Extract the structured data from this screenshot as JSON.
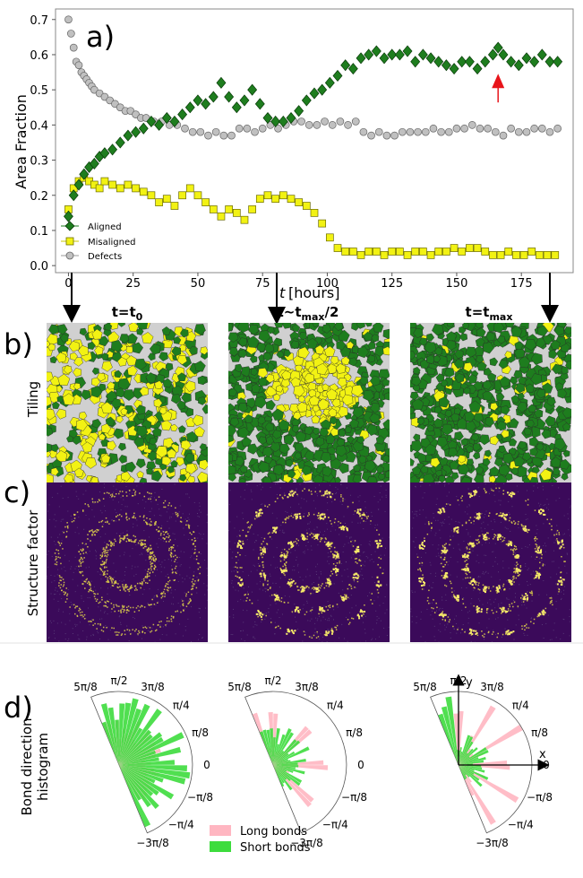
{
  "panel_labels": {
    "a": "a)",
    "b": "b)",
    "c": "c)",
    "d": "d)"
  },
  "columns": [
    "t=t",
    "t~t",
    "t=t"
  ],
  "column_titles": [
    {
      "main": "t=t",
      "sub": "0"
    },
    {
      "main": "t~t",
      "sub": "max",
      "tail": "/2"
    },
    {
      "main": "t=t",
      "sub": "max"
    }
  ],
  "row_labels": {
    "tiling": "Tiling",
    "structure": "Structure factor",
    "bond_line1": "Bond direction",
    "bond_line2": "histogram"
  },
  "legend_d": {
    "long": "Long bonds",
    "short": "Short bonds"
  },
  "colors": {
    "aligned": "#1e7d1e",
    "misaligned": "#f2f213",
    "defects": "#c0c0c0",
    "tile_bg": "#d0d0d0",
    "sf_bg": "#3b0a5a",
    "sf_ring": "#e0d24a",
    "long_bonds": "#ffb6c1",
    "short_bonds": "#3ddc3d",
    "arrow": "#e8141a"
  },
  "chart_data": {
    "type": "scatter",
    "title": "",
    "xlabel": "t [hours]",
    "ylabel": "Area Fraction",
    "xlim": [
      -5,
      195
    ],
    "ylim": [
      -0.02,
      0.73
    ],
    "xticks": [
      0,
      25,
      50,
      75,
      100,
      125,
      150,
      175
    ],
    "yticks": [
      0.0,
      0.1,
      0.2,
      0.3,
      0.4,
      0.5,
      0.6,
      0.7
    ],
    "legend_position": "bottom-left",
    "annotation": {
      "type": "red-arrow",
      "x": 166,
      "y": 0.51
    },
    "series": [
      {
        "name": "Aligned",
        "marker": "diamond",
        "x": [
          0,
          2,
          4,
          6,
          8,
          10,
          12,
          14,
          17,
          20,
          23,
          26,
          29,
          32,
          35,
          38,
          41,
          44,
          47,
          50,
          53,
          56,
          59,
          62,
          65,
          68,
          71,
          74,
          77,
          80,
          83,
          86,
          89,
          92,
          95,
          98,
          101,
          104,
          107,
          110,
          113,
          116,
          119,
          122,
          125,
          128,
          131,
          134,
          137,
          140,
          143,
          146,
          149,
          152,
          155,
          158,
          161,
          164,
          166,
          168,
          171,
          174,
          177,
          180,
          183,
          186,
          189
        ],
        "y": [
          0.14,
          0.2,
          0.23,
          0.26,
          0.28,
          0.29,
          0.31,
          0.32,
          0.33,
          0.35,
          0.37,
          0.38,
          0.39,
          0.41,
          0.4,
          0.42,
          0.41,
          0.43,
          0.45,
          0.47,
          0.46,
          0.48,
          0.52,
          0.48,
          0.45,
          0.47,
          0.5,
          0.46,
          0.42,
          0.41,
          0.41,
          0.42,
          0.44,
          0.47,
          0.49,
          0.5,
          0.52,
          0.54,
          0.57,
          0.56,
          0.59,
          0.6,
          0.61,
          0.59,
          0.6,
          0.6,
          0.61,
          0.58,
          0.6,
          0.59,
          0.58,
          0.57,
          0.56,
          0.58,
          0.58,
          0.56,
          0.58,
          0.6,
          0.62,
          0.6,
          0.58,
          0.57,
          0.59,
          0.58,
          0.6,
          0.58,
          0.58
        ]
      },
      {
        "name": "Misaligned",
        "marker": "square",
        "x": [
          0,
          2,
          4,
          6,
          8,
          10,
          12,
          14,
          17,
          20,
          23,
          26,
          29,
          32,
          35,
          38,
          41,
          44,
          47,
          50,
          53,
          56,
          59,
          62,
          65,
          68,
          71,
          74,
          77,
          80,
          83,
          86,
          89,
          92,
          95,
          98,
          101,
          104,
          107,
          110,
          113,
          116,
          119,
          122,
          125,
          128,
          131,
          134,
          137,
          140,
          143,
          146,
          149,
          152,
          155,
          158,
          161,
          164,
          167,
          170,
          173,
          176,
          179,
          182,
          185,
          188
        ],
        "y": [
          0.16,
          0.22,
          0.24,
          0.25,
          0.24,
          0.23,
          0.22,
          0.24,
          0.23,
          0.22,
          0.23,
          0.22,
          0.21,
          0.2,
          0.18,
          0.19,
          0.17,
          0.2,
          0.22,
          0.2,
          0.18,
          0.16,
          0.14,
          0.16,
          0.15,
          0.13,
          0.16,
          0.19,
          0.2,
          0.19,
          0.2,
          0.19,
          0.18,
          0.17,
          0.15,
          0.12,
          0.08,
          0.05,
          0.04,
          0.04,
          0.03,
          0.04,
          0.04,
          0.03,
          0.04,
          0.04,
          0.03,
          0.04,
          0.04,
          0.03,
          0.04,
          0.04,
          0.05,
          0.04,
          0.05,
          0.05,
          0.04,
          0.03,
          0.03,
          0.04,
          0.03,
          0.03,
          0.04,
          0.03,
          0.03,
          0.03
        ]
      },
      {
        "name": "Defects",
        "marker": "circle",
        "x": [
          0,
          1,
          2,
          3,
          4,
          5,
          6,
          7,
          8,
          9,
          10,
          12,
          14,
          16,
          18,
          20,
          22,
          24,
          26,
          28,
          30,
          33,
          36,
          39,
          42,
          45,
          48,
          51,
          54,
          57,
          60,
          63,
          66,
          69,
          72,
          75,
          78,
          81,
          84,
          87,
          90,
          93,
          96,
          99,
          102,
          105,
          108,
          111,
          114,
          117,
          120,
          123,
          126,
          129,
          132,
          135,
          138,
          141,
          144,
          147,
          150,
          153,
          156,
          159,
          162,
          165,
          168,
          171,
          174,
          177,
          180,
          183,
          186,
          189
        ],
        "y": [
          0.7,
          0.66,
          0.62,
          0.58,
          0.57,
          0.55,
          0.54,
          0.53,
          0.52,
          0.51,
          0.5,
          0.49,
          0.48,
          0.47,
          0.46,
          0.45,
          0.44,
          0.44,
          0.43,
          0.42,
          0.42,
          0.41,
          0.41,
          0.4,
          0.4,
          0.39,
          0.38,
          0.38,
          0.37,
          0.38,
          0.37,
          0.37,
          0.39,
          0.39,
          0.38,
          0.39,
          0.4,
          0.39,
          0.4,
          0.41,
          0.41,
          0.4,
          0.4,
          0.41,
          0.4,
          0.41,
          0.4,
          0.41,
          0.38,
          0.37,
          0.38,
          0.37,
          0.37,
          0.38,
          0.38,
          0.38,
          0.38,
          0.39,
          0.38,
          0.38,
          0.39,
          0.39,
          0.4,
          0.39,
          0.39,
          0.38,
          0.37,
          0.39,
          0.38,
          0.38,
          0.39,
          0.39,
          0.38,
          0.39
        ]
      }
    ]
  },
  "polar_ticks": [
    "5π/8",
    "π/2",
    "3π/8",
    "π/4",
    "π/8",
    "0",
    "−π/8",
    "−π/4",
    "−3π/8"
  ],
  "polar_axes": {
    "x": "x",
    "y": "y"
  }
}
